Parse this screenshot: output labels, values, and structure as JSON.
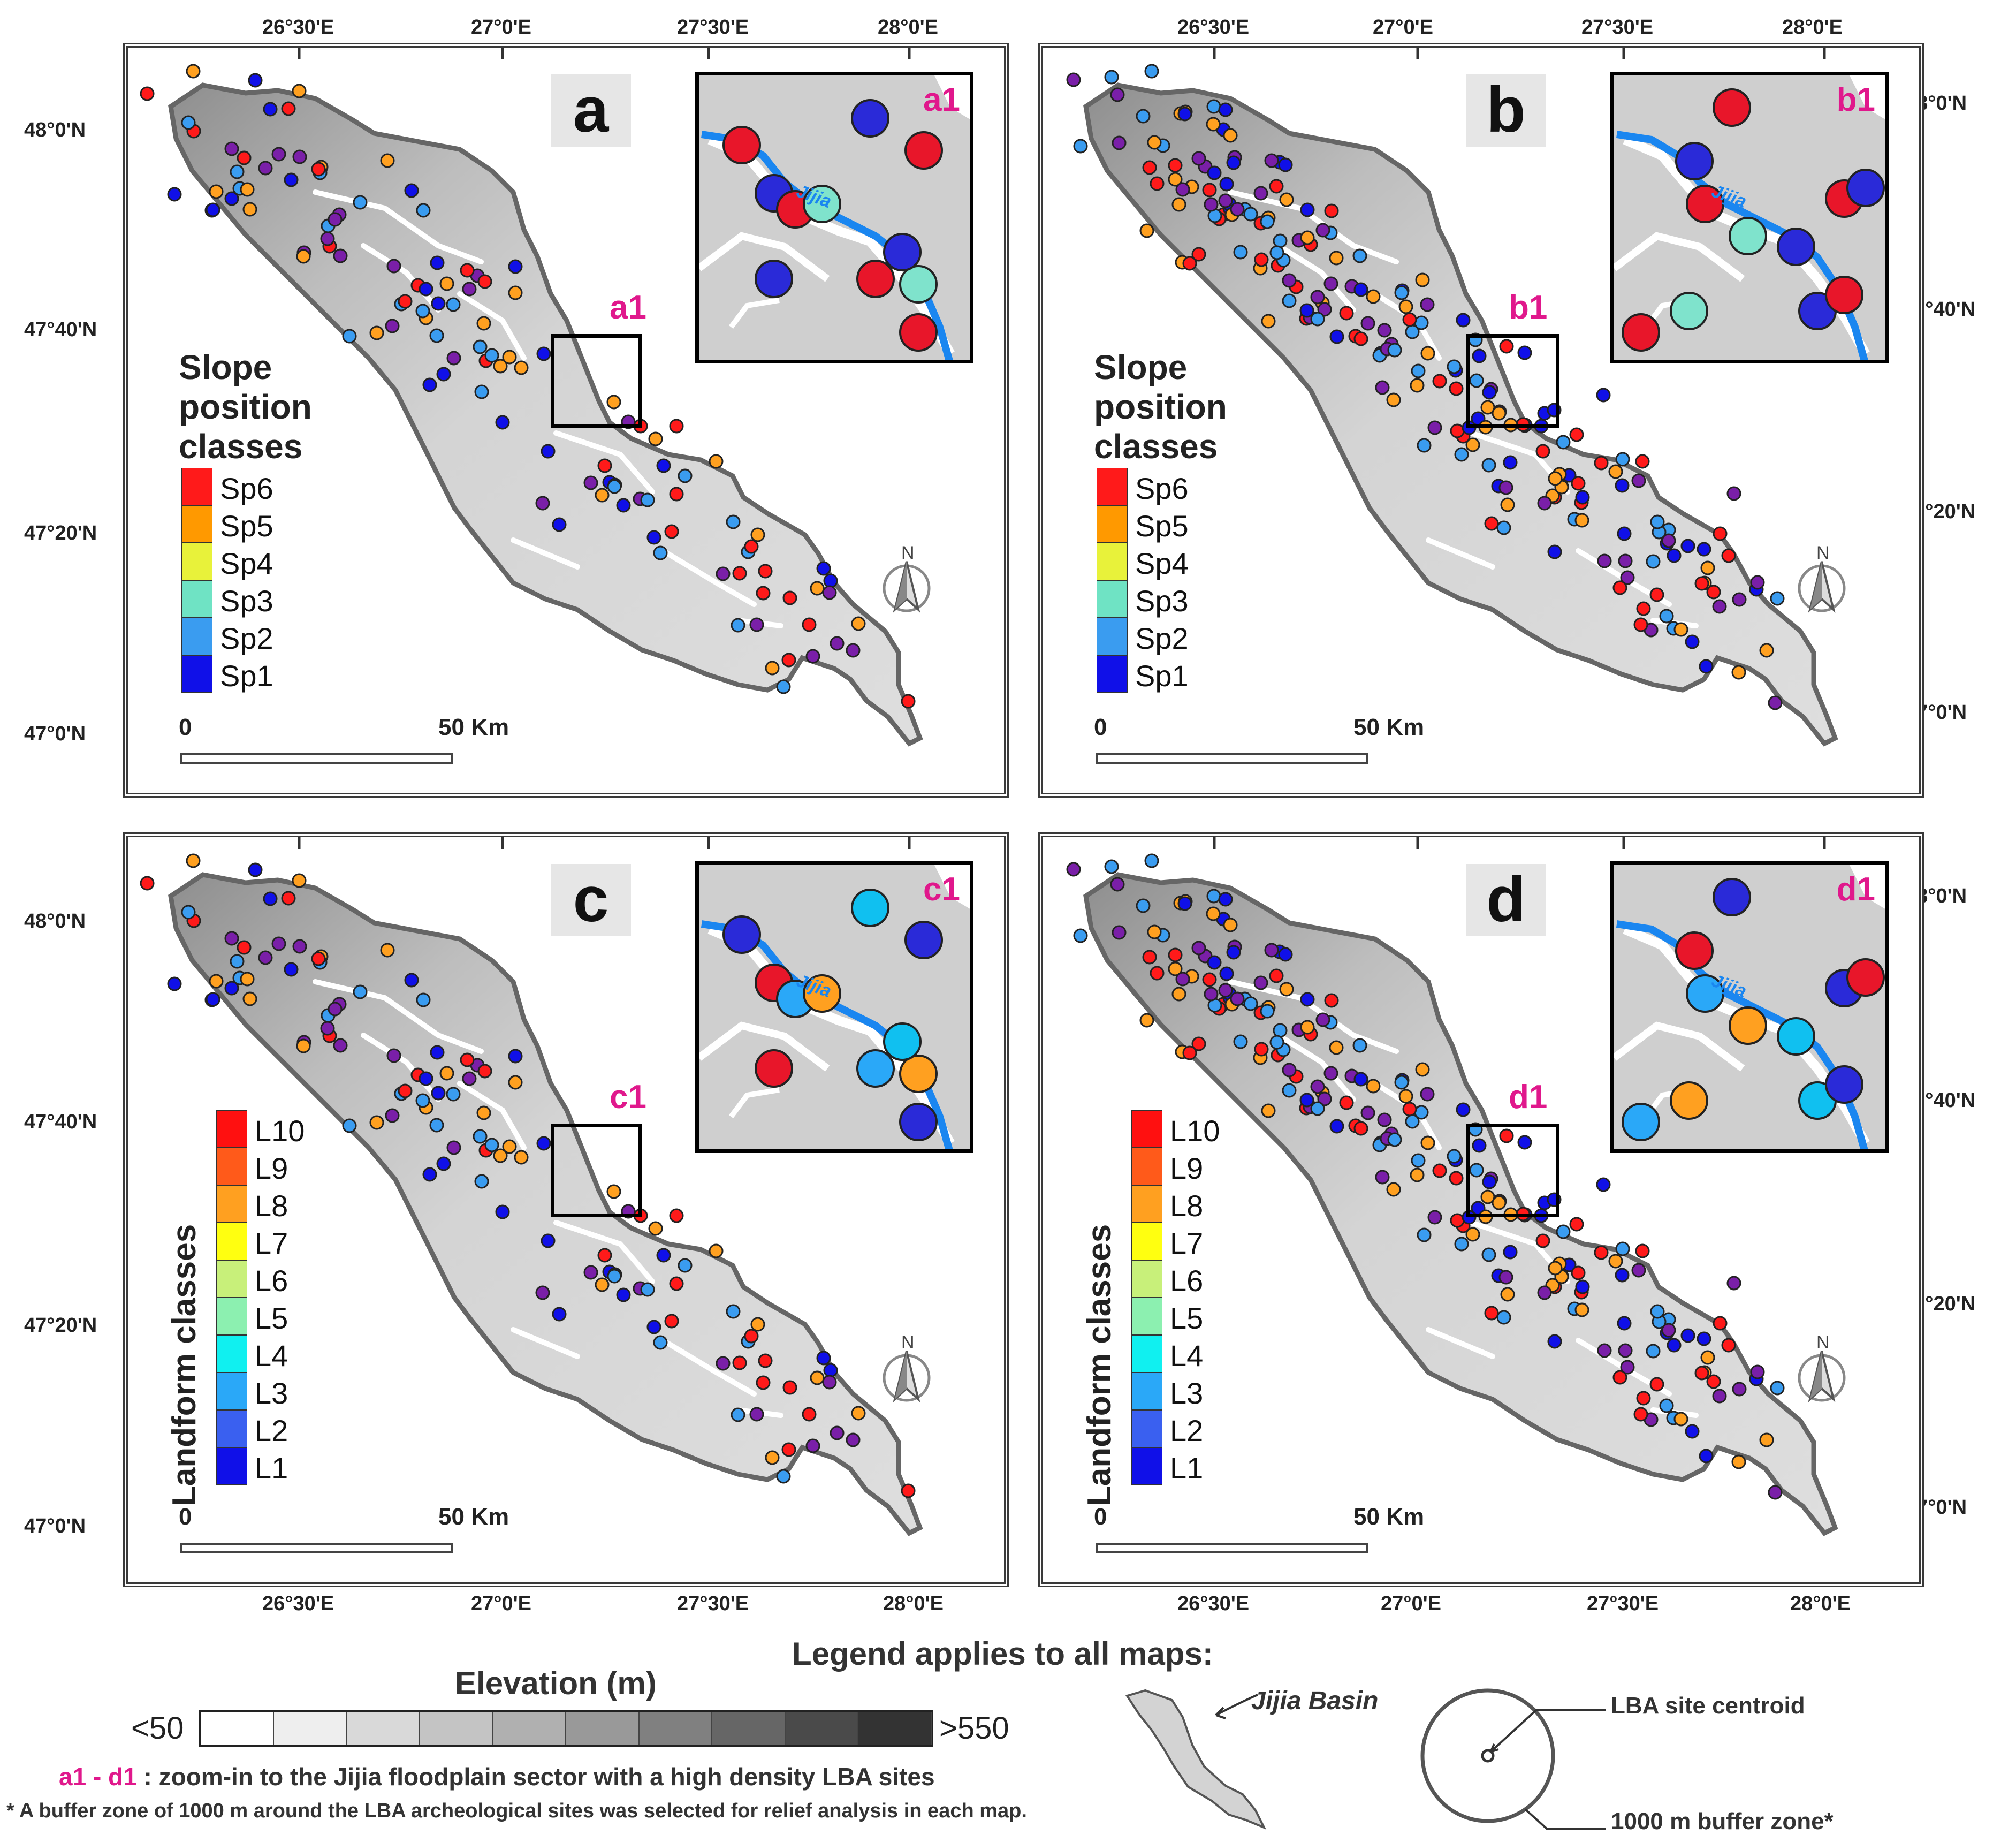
{
  "coords": {
    "lon_top": [
      "26°30'E",
      "27°0'E",
      "27°30'E",
      "28°0'E"
    ],
    "lon_bottom": [
      "26°30'E",
      "27°0'E",
      "27°30'E",
      "28°0'E"
    ],
    "lat": [
      "48°0'N",
      "47°40'N",
      "47°20'N",
      "47°0'N"
    ]
  },
  "panels": [
    {
      "label": "a",
      "inset_label": "a1",
      "box_label": "a1",
      "legend": "slope"
    },
    {
      "label": "b",
      "inset_label": "b1",
      "box_label": "b1",
      "legend": "slope"
    },
    {
      "label": "c",
      "inset_label": "c1",
      "box_label": "c1",
      "legend": "landform"
    },
    {
      "label": "d",
      "inset_label": "d1",
      "box_label": "d1",
      "legend": "landform"
    }
  ],
  "slope_legend": {
    "title": "Slope position classes",
    "items": [
      {
        "label": "Sp6",
        "color": "#ff1a1a"
      },
      {
        "label": "Sp5",
        "color": "#ff9900"
      },
      {
        "label": "Sp4",
        "color": "#e8f23a"
      },
      {
        "label": "Sp3",
        "color": "#6fe3c4"
      },
      {
        "label": "Sp2",
        "color": "#3a9cf0"
      },
      {
        "label": "Sp1",
        "color": "#1010e8"
      }
    ]
  },
  "landform_legend": {
    "title": "Landform classes",
    "items": [
      {
        "label": "L10",
        "color": "#ff1010"
      },
      {
        "label": "L9",
        "color": "#ff5a1a"
      },
      {
        "label": "L8",
        "color": "#ffa020"
      },
      {
        "label": "L7",
        "color": "#ffff10"
      },
      {
        "label": "L6",
        "color": "#c8f07a"
      },
      {
        "label": "L5",
        "color": "#8cf0b0"
      },
      {
        "label": "L4",
        "color": "#10f0f0"
      },
      {
        "label": "L3",
        "color": "#2aa8f8"
      },
      {
        "label": "L2",
        "color": "#3a60f0"
      },
      {
        "label": "L1",
        "color": "#1010e8"
      }
    ]
  },
  "scale": {
    "zero": "0",
    "fifty": "50",
    "unit": "Km"
  },
  "north": "N",
  "river_label": "Jijia",
  "footer": {
    "legend_heading": "Legend applies to all maps:",
    "elevation_title": "Elevation (m)",
    "elev_low": "<50",
    "elev_high": ">550",
    "elevation_colors": [
      "#ffffff",
      "#eeeeee",
      "#d9d9d9",
      "#c4c4c4",
      "#b0b0b0",
      "#999999",
      "#808080",
      "#666666",
      "#4a4a4a",
      "#333333"
    ],
    "zoom_prefix": "a1 - d1",
    "zoom_text": " : zoom-in to the Jijia floodplain sector with a high density LBA sites",
    "buffer_note": "* A buffer zone of 1000 m  around the LBA archeological sites was selected for relief analysis in each map.",
    "basin_label": "Jijia Basin",
    "centroid_label": "LBA site centroid",
    "buffer_label": "1000 m buffer zone*"
  }
}
